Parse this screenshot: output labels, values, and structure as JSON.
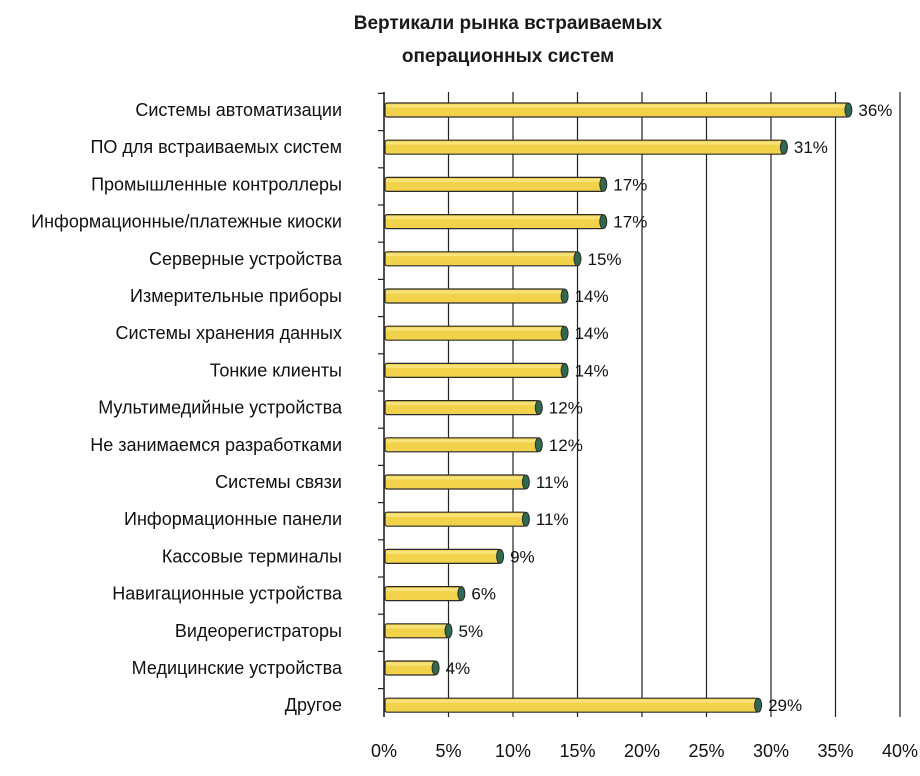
{
  "chart_data": {
    "type": "bar",
    "orientation": "horizontal",
    "title_lines": [
      "Вертикали рынка встраиваемых",
      "операционных систем"
    ],
    "categories": [
      "Системы автоматизации",
      "ПО для встраиваемых систем",
      "Промышленные контроллеры",
      "Информационные/платежные киоски",
      "Серверные устройства",
      "Измерительные приборы",
      "Системы хранения данных",
      "Тонкие клиенты",
      "Мультимедийные устройства",
      "Не занимаемся разработками",
      "Системы связи",
      "Информационные панели",
      "Кассовые терминалы",
      "Навигационные устройства",
      "Видеорегистраторы",
      "Медицинские устройства",
      "Другое"
    ],
    "values": [
      36,
      31,
      17,
      17,
      15,
      14,
      14,
      14,
      12,
      12,
      11,
      11,
      9,
      6,
      5,
      4,
      29
    ],
    "value_labels": [
      "36%",
      "31%",
      "17%",
      "17%",
      "15%",
      "14%",
      "14%",
      "14%",
      "12%",
      "12%",
      "11%",
      "11%",
      "9%",
      "6%",
      "5%",
      "4%",
      "29%"
    ],
    "x_ticks": [
      0,
      5,
      10,
      15,
      20,
      25,
      30,
      35,
      40
    ],
    "x_tick_labels": [
      "0%",
      "5%",
      "10%",
      "15%",
      "20%",
      "25%",
      "30%",
      "35%",
      "40%"
    ],
    "xlim": [
      0,
      40
    ],
    "grid": true,
    "colors": {
      "bar": "#f2d24b",
      "bar_top": "#f8e37a",
      "bar_edge": "#2a2a2a",
      "bar_cap": "#2f6a4f",
      "grid": "#222222"
    }
  }
}
